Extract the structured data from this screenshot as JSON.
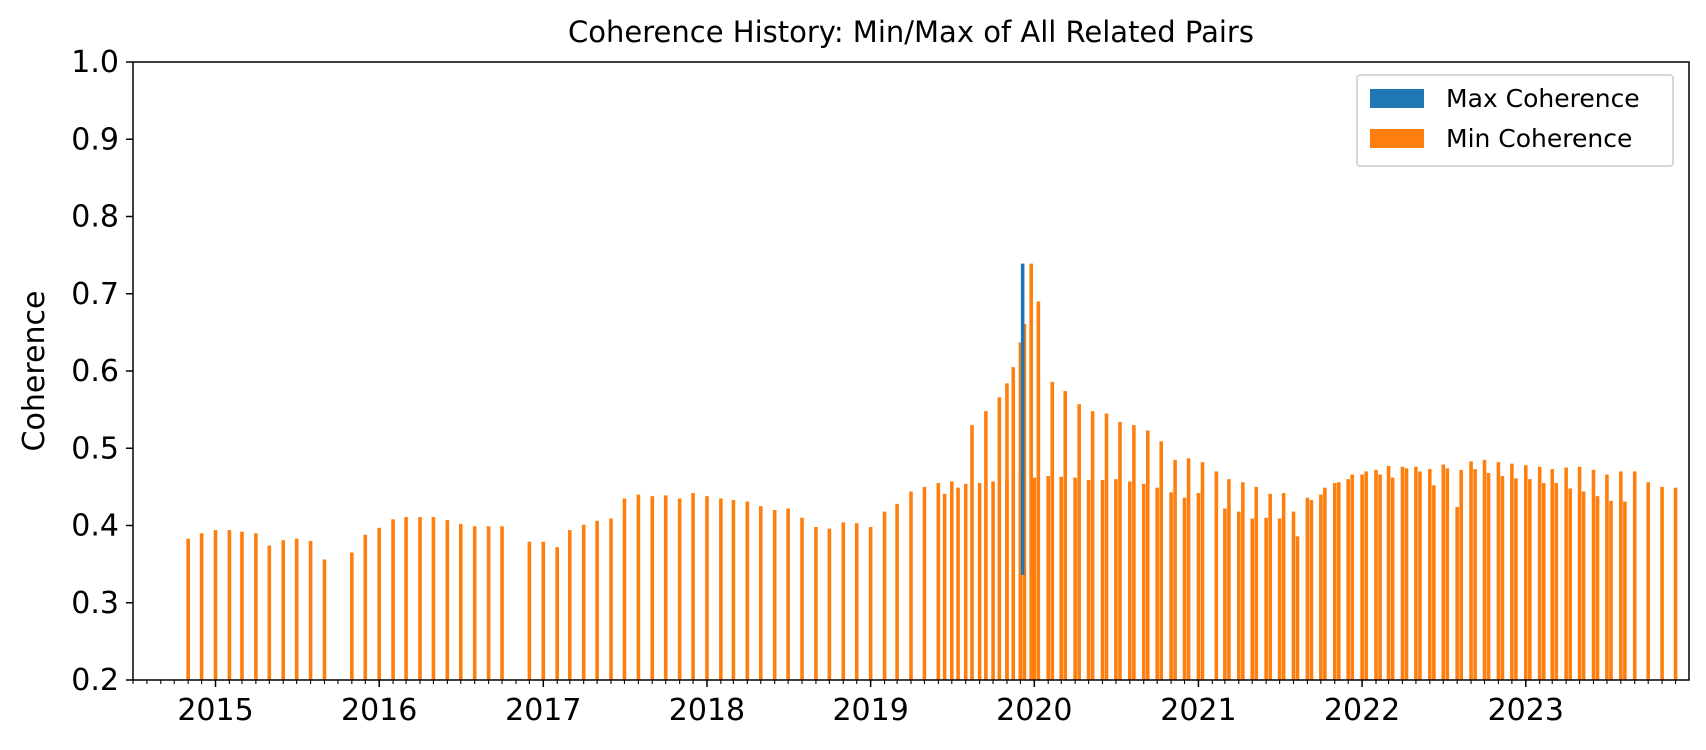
{
  "chart_data": {
    "type": "bar",
    "title": "Coherence History: Min/Max of All Related Pairs",
    "xlabel": "",
    "ylabel": "Coherence",
    "ylim": [
      0.2,
      1.0
    ],
    "yticks": [
      "0.2",
      "0.3",
      "0.4",
      "0.5",
      "0.6",
      "0.7",
      "0.8",
      "0.9",
      "1.0"
    ],
    "xlim": [
      "2014-07-01",
      "2023-12-31"
    ],
    "xticks": [
      {
        "date": "2015-01-01",
        "label": "2015"
      },
      {
        "date": "2016-01-01",
        "label": "2016"
      },
      {
        "date": "2017-01-01",
        "label": "2017"
      },
      {
        "date": "2018-01-01",
        "label": "2018"
      },
      {
        "date": "2019-01-01",
        "label": "2019"
      },
      {
        "date": "2020-01-01",
        "label": "2020"
      },
      {
        "date": "2021-01-01",
        "label": "2021"
      },
      {
        "date": "2022-01-01",
        "label": "2022"
      },
      {
        "date": "2023-01-01",
        "label": "2023"
      }
    ],
    "grid": false,
    "legend_position": "upper right",
    "series": [
      {
        "name": "Max Coherence",
        "color": "#1f77b4",
        "data": [
          {
            "x": "2019-12-06",
            "bottom": 0.336,
            "top": 0.739
          }
        ]
      },
      {
        "name": "Min Coherence",
        "color": "#ff7f0e",
        "data": [
          {
            "x": "2014-11-01",
            "y": 0.383
          },
          {
            "x": "2014-12-01",
            "y": 0.39
          },
          {
            "x": "2015-01-01",
            "y": 0.394
          },
          {
            "x": "2015-02-01",
            "y": 0.394
          },
          {
            "x": "2015-03-01",
            "y": 0.392
          },
          {
            "x": "2015-04-01",
            "y": 0.39
          },
          {
            "x": "2015-05-01",
            "y": 0.374
          },
          {
            "x": "2015-06-01",
            "y": 0.381
          },
          {
            "x": "2015-07-01",
            "y": 0.383
          },
          {
            "x": "2015-08-01",
            "y": 0.38
          },
          {
            "x": "2015-09-01",
            "y": 0.356
          },
          {
            "x": "2015-11-01",
            "y": 0.365
          },
          {
            "x": "2015-12-01",
            "y": 0.388
          },
          {
            "x": "2016-01-01",
            "y": 0.397
          },
          {
            "x": "2016-02-01",
            "y": 0.408
          },
          {
            "x": "2016-03-01",
            "y": 0.411
          },
          {
            "x": "2016-04-01",
            "y": 0.411
          },
          {
            "x": "2016-05-01",
            "y": 0.411
          },
          {
            "x": "2016-06-01",
            "y": 0.407
          },
          {
            "x": "2016-07-01",
            "y": 0.402
          },
          {
            "x": "2016-08-01",
            "y": 0.399
          },
          {
            "x": "2016-09-01",
            "y": 0.399
          },
          {
            "x": "2016-10-01",
            "y": 0.399
          },
          {
            "x": "2016-12-01",
            "y": 0.379
          },
          {
            "x": "2017-01-01",
            "y": 0.379
          },
          {
            "x": "2017-02-01",
            "y": 0.372
          },
          {
            "x": "2017-03-01",
            "y": 0.394
          },
          {
            "x": "2017-04-01",
            "y": 0.401
          },
          {
            "x": "2017-05-01",
            "y": 0.406
          },
          {
            "x": "2017-06-01",
            "y": 0.409
          },
          {
            "x": "2017-07-01",
            "y": 0.435
          },
          {
            "x": "2017-08-01",
            "y": 0.44
          },
          {
            "x": "2017-09-01",
            "y": 0.438
          },
          {
            "x": "2017-10-01",
            "y": 0.439
          },
          {
            "x": "2017-11-01",
            "y": 0.435
          },
          {
            "x": "2017-12-01",
            "y": 0.442
          },
          {
            "x": "2018-01-01",
            "y": 0.438
          },
          {
            "x": "2018-02-01",
            "y": 0.435
          },
          {
            "x": "2018-03-01",
            "y": 0.433
          },
          {
            "x": "2018-04-01",
            "y": 0.431
          },
          {
            "x": "2018-05-01",
            "y": 0.425
          },
          {
            "x": "2018-06-01",
            "y": 0.42
          },
          {
            "x": "2018-07-01",
            "y": 0.422
          },
          {
            "x": "2018-08-01",
            "y": 0.41
          },
          {
            "x": "2018-09-01",
            "y": 0.398
          },
          {
            "x": "2018-10-01",
            "y": 0.396
          },
          {
            "x": "2018-11-01",
            "y": 0.404
          },
          {
            "x": "2018-12-01",
            "y": 0.403
          },
          {
            "x": "2019-01-01",
            "y": 0.398
          },
          {
            "x": "2019-02-01",
            "y": 0.418
          },
          {
            "x": "2019-03-01",
            "y": 0.428
          },
          {
            "x": "2019-04-01",
            "y": 0.444
          },
          {
            "x": "2019-05-01",
            "y": 0.45
          },
          {
            "x": "2019-06-01",
            "y": 0.455
          },
          {
            "x": "2019-07-01",
            "y": 0.457
          },
          {
            "x": "2019-08-01",
            "y": 0.454
          },
          {
            "x": "2019-09-01",
            "y": 0.455
          },
          {
            "x": "2019-10-01",
            "y": 0.457
          },
          {
            "x": "2019-11-01",
            "y": 0.46
          },
          {
            "x": "2019-12-01",
            "y": 0.465
          },
          {
            "x": "2020-01-01",
            "y": 0.462
          },
          {
            "x": "2020-02-01",
            "y": 0.464
          },
          {
            "x": "2020-03-01",
            "y": 0.463
          },
          {
            "x": "2020-04-01",
            "y": 0.462
          },
          {
            "x": "2020-05-01",
            "y": 0.459
          },
          {
            "x": "2020-06-01",
            "y": 0.459
          },
          {
            "x": "2020-07-01",
            "y": 0.46
          },
          {
            "x": "2020-08-01",
            "y": 0.457
          },
          {
            "x": "2020-09-01",
            "y": 0.454
          },
          {
            "x": "2020-10-01",
            "y": 0.449
          },
          {
            "x": "2020-11-01",
            "y": 0.443
          },
          {
            "x": "2020-12-01",
            "y": 0.436
          },
          {
            "x": "2021-01-01",
            "y": 0.442
          },
          {
            "x": "2021-03-01",
            "y": 0.422
          },
          {
            "x": "2021-04-01",
            "y": 0.418
          },
          {
            "x": "2021-05-01",
            "y": 0.409
          },
          {
            "x": "2021-06-01",
            "y": 0.41
          },
          {
            "x": "2021-07-01",
            "y": 0.409
          },
          {
            "x": "2021-08-01",
            "y": 0.418
          },
          {
            "x": "2021-09-01",
            "y": 0.436
          },
          {
            "x": "2021-10-01",
            "y": 0.44
          },
          {
            "x": "2021-11-01",
            "y": 0.455
          },
          {
            "x": "2021-12-01",
            "y": 0.46
          },
          {
            "x": "2022-01-01",
            "y": 0.466
          },
          {
            "x": "2022-02-01",
            "y": 0.472
          },
          {
            "x": "2022-03-01",
            "y": 0.477
          },
          {
            "x": "2022-04-01",
            "y": 0.476
          },
          {
            "x": "2022-05-01",
            "y": 0.476
          },
          {
            "x": "2022-06-01",
            "y": 0.473
          },
          {
            "x": "2022-07-01",
            "y": 0.479
          },
          {
            "x": "2022-08-01",
            "y": 0.424
          },
          {
            "x": "2022-09-01",
            "y": 0.483
          },
          {
            "x": "2022-10-01",
            "y": 0.485
          },
          {
            "x": "2022-11-01",
            "y": 0.482
          },
          {
            "x": "2022-12-01",
            "y": 0.48
          },
          {
            "x": "2023-01-01",
            "y": 0.478
          },
          {
            "x": "2023-02-01",
            "y": 0.476
          },
          {
            "x": "2023-03-01",
            "y": 0.473
          },
          {
            "x": "2023-04-01",
            "y": 0.475
          },
          {
            "x": "2023-05-01",
            "y": 0.476
          },
          {
            "x": "2023-06-01",
            "y": 0.472
          },
          {
            "x": "2023-07-01",
            "y": 0.466
          },
          {
            "x": "2023-08-01",
            "y": 0.47
          },
          {
            "x": "2023-09-01",
            "y": 0.47
          },
          {
            "x": "2023-10-01",
            "y": 0.456
          },
          {
            "x": "2023-11-01",
            "y": 0.45
          },
          {
            "x": "2023-12-01",
            "y": 0.449
          },
          {
            "x": "2019-06-15",
            "y": 0.441
          },
          {
            "x": "2019-07-15",
            "y": 0.449
          },
          {
            "x": "2019-08-15",
            "y": 0.53
          },
          {
            "x": "2019-09-15",
            "y": 0.548
          },
          {
            "x": "2019-10-15",
            "y": 0.566
          },
          {
            "x": "2019-11-01",
            "y": 0.584
          },
          {
            "x": "2019-11-15",
            "y": 0.605
          },
          {
            "x": "2019-12-01",
            "y": 0.637
          },
          {
            "x": "2019-12-10",
            "y": 0.661
          },
          {
            "x": "2019-12-25",
            "y": 0.739
          },
          {
            "x": "2020-01-10",
            "y": 0.69
          },
          {
            "x": "2020-02-10",
            "y": 0.586
          },
          {
            "x": "2020-03-10",
            "y": 0.574
          },
          {
            "x": "2020-04-10",
            "y": 0.557
          },
          {
            "x": "2020-05-10",
            "y": 0.548
          },
          {
            "x": "2020-06-10",
            "y": 0.545
          },
          {
            "x": "2020-07-10",
            "y": 0.534
          },
          {
            "x": "2020-08-10",
            "y": 0.53
          },
          {
            "x": "2020-09-10",
            "y": 0.523
          },
          {
            "x": "2020-10-10",
            "y": 0.509
          },
          {
            "x": "2020-11-10",
            "y": 0.485
          },
          {
            "x": "2020-12-10",
            "y": 0.487
          },
          {
            "x": "2021-01-10",
            "y": 0.482
          },
          {
            "x": "2021-02-10",
            "y": 0.47
          },
          {
            "x": "2021-03-10",
            "y": 0.46
          },
          {
            "x": "2021-04-10",
            "y": 0.456
          },
          {
            "x": "2021-05-10",
            "y": 0.45
          },
          {
            "x": "2021-06-10",
            "y": 0.441
          },
          {
            "x": "2021-07-10",
            "y": 0.442
          },
          {
            "x": "2021-08-10",
            "y": 0.386
          },
          {
            "x": "2021-09-10",
            "y": 0.433
          },
          {
            "x": "2021-10-10",
            "y": 0.449
          },
          {
            "x": "2021-11-10",
            "y": 0.456
          },
          {
            "x": "2021-12-10",
            "y": 0.466
          },
          {
            "x": "2022-01-10",
            "y": 0.47
          },
          {
            "x": "2022-02-10",
            "y": 0.466
          },
          {
            "x": "2022-03-10",
            "y": 0.462
          },
          {
            "x": "2022-04-10",
            "y": 0.474
          },
          {
            "x": "2022-05-10",
            "y": 0.47
          },
          {
            "x": "2022-06-10",
            "y": 0.452
          },
          {
            "x": "2022-07-10",
            "y": 0.474
          },
          {
            "x": "2022-08-10",
            "y": 0.472
          },
          {
            "x": "2022-09-10",
            "y": 0.473
          },
          {
            "x": "2022-10-10",
            "y": 0.468
          },
          {
            "x": "2022-11-10",
            "y": 0.464
          },
          {
            "x": "2022-12-10",
            "y": 0.461
          },
          {
            "x": "2023-01-10",
            "y": 0.46
          },
          {
            "x": "2023-02-10",
            "y": 0.455
          },
          {
            "x": "2023-03-10",
            "y": 0.455
          },
          {
            "x": "2023-04-10",
            "y": 0.448
          },
          {
            "x": "2023-05-10",
            "y": 0.444
          },
          {
            "x": "2023-06-10",
            "y": 0.438
          },
          {
            "x": "2023-07-10",
            "y": 0.432
          },
          {
            "x": "2023-08-10",
            "y": 0.431
          }
        ]
      }
    ]
  }
}
